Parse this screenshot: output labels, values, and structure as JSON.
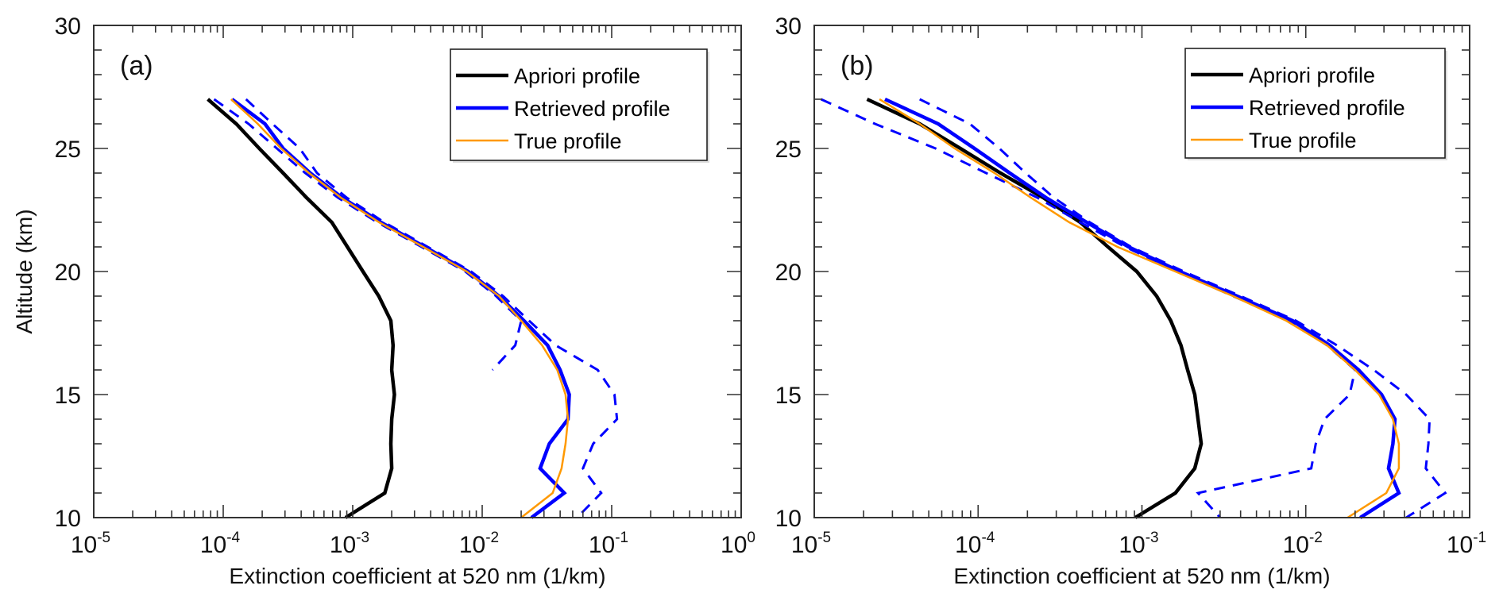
{
  "chart_data": [
    {
      "type": "line",
      "panel_label": "(a)",
      "xlabel": "Extinction coefficient at 520 nm (1/km)",
      "ylabel": "Altitude (km)",
      "xscale": "log",
      "xlim": [
        1e-05,
        1
      ],
      "ylim": [
        10,
        30
      ],
      "xticks": [
        {
          "base": "10",
          "exp": "-5"
        },
        {
          "base": "10",
          "exp": "-4"
        },
        {
          "base": "10",
          "exp": "-3"
        },
        {
          "base": "10",
          "exp": "-2"
        },
        {
          "base": "10",
          "exp": "-1"
        },
        {
          "base": "10",
          "exp": "0"
        }
      ],
      "yticks": [
        "10",
        "15",
        "20",
        "25",
        "30"
      ],
      "legend": {
        "position": "top-right",
        "entries": [
          "Apriori profile",
          "Retrieved profile",
          "True profile"
        ]
      },
      "series": [
        {
          "name": "Apriori profile",
          "color": "#000000",
          "style": "solid",
          "altitude": [
            27,
            26,
            25,
            24,
            23,
            22,
            21,
            20,
            19,
            18,
            17,
            16,
            15,
            14,
            13,
            12,
            11,
            10
          ],
          "values": [
            7.6e-05,
            0.000126,
            0.00019,
            0.00029,
            0.00044,
            0.00069,
            0.00091,
            0.0012,
            0.00159,
            0.00197,
            0.00205,
            0.002,
            0.0021,
            0.002,
            0.00197,
            0.002,
            0.00177,
            0.00088
          ]
        },
        {
          "name": "Retrieved profile",
          "color": "#0000ff",
          "style": "solid",
          "altitude": [
            27,
            26,
            25,
            24,
            23,
            22,
            21,
            20,
            19,
            18,
            17,
            16,
            15,
            14,
            13,
            12,
            11,
            10
          ],
          "values": [
            0.000117,
            0.00021,
            0.00029,
            0.00047,
            0.00083,
            0.00165,
            0.0036,
            0.0078,
            0.0135,
            0.021,
            0.032,
            0.04,
            0.047,
            0.046,
            0.033,
            0.028,
            0.043,
            0.024
          ]
        },
        {
          "name": "Retrieved upper bound",
          "color": "#0000ff",
          "style": "dashed",
          "altitude": [
            27,
            26,
            25,
            24,
            23,
            22,
            21,
            20,
            19,
            18,
            17,
            16,
            15,
            14,
            13,
            12,
            11,
            10
          ],
          "values": [
            0.00015,
            0.00024,
            0.00039,
            0.00053,
            0.0009,
            0.00175,
            0.0038,
            0.0082,
            0.0145,
            0.023,
            0.037,
            0.078,
            0.105,
            0.11,
            0.072,
            0.06,
            0.083,
            0.054
          ]
        },
        {
          "name": "Retrieved lower bound",
          "color": "#0000ff",
          "style": "dashed",
          "altitude": [
            27,
            26,
            25,
            24,
            23,
            22,
            21,
            20,
            19,
            18,
            17,
            16
          ],
          "values": [
            8.5e-05,
            0.000157,
            0.00026,
            0.00043,
            0.00077,
            0.00155,
            0.0034,
            0.0074,
            0.0128,
            0.02,
            0.018,
            0.012
          ]
        },
        {
          "name": "True profile",
          "color": "#ff9900",
          "style": "solid",
          "altitude": [
            27,
            26,
            25,
            24,
            23,
            22,
            21,
            20,
            19,
            18,
            17,
            16,
            15,
            14,
            13,
            12,
            11,
            10
          ],
          "values": [
            0.000115,
            0.000185,
            0.00028,
            0.00046,
            0.00081,
            0.0016,
            0.0035,
            0.0076,
            0.0135,
            0.02,
            0.029,
            0.038,
            0.044,
            0.046,
            0.044,
            0.041,
            0.035,
            0.02
          ]
        }
      ]
    },
    {
      "type": "line",
      "panel_label": "(b)",
      "xlabel": "Extinction coefficient at 520 nm (1/km)",
      "ylabel": "",
      "xscale": "log",
      "xlim": [
        1e-05,
        0.1
      ],
      "ylim": [
        10,
        30
      ],
      "xticks": [
        {
          "base": "10",
          "exp": "-5"
        },
        {
          "base": "10",
          "exp": "-4"
        },
        {
          "base": "10",
          "exp": "-3"
        },
        {
          "base": "10",
          "exp": "-2"
        },
        {
          "base": "10",
          "exp": "-1"
        }
      ],
      "yticks": [
        "10",
        "15",
        "20",
        "25",
        "30"
      ],
      "legend": {
        "position": "top-right",
        "entries": [
          "Apriori profile",
          "Retrieved profile",
          "True profile"
        ]
      },
      "series": [
        {
          "name": "Apriori profile",
          "color": "#000000",
          "style": "solid",
          "altitude": [
            27,
            26,
            25,
            24,
            23,
            22,
            21,
            20,
            19,
            18,
            17,
            16,
            15,
            14,
            13,
            12,
            11,
            10
          ],
          "values": [
            2.1e-05,
            4.4e-05,
            7.8e-05,
            0.000137,
            0.00025,
            0.00042,
            0.00062,
            0.00093,
            0.00123,
            0.0015,
            0.00173,
            0.0019,
            0.0021,
            0.0022,
            0.0023,
            0.0021,
            0.0016,
            0.00091
          ]
        },
        {
          "name": "Retrieved profile",
          "color": "#0000ff",
          "style": "solid",
          "altitude": [
            27,
            26,
            25,
            24,
            23,
            22,
            21,
            20,
            19,
            18,
            17,
            16,
            15,
            14,
            13,
            12,
            11,
            10
          ],
          "values": [
            2.7e-05,
            5.7e-05,
            9.5e-05,
            0.000156,
            0.00026,
            0.00046,
            0.00083,
            0.0017,
            0.0038,
            0.0083,
            0.014,
            0.021,
            0.029,
            0.035,
            0.034,
            0.032,
            0.037,
            0.0215
          ]
        },
        {
          "name": "Retrieved upper bound",
          "color": "#0000ff",
          "style": "dashed",
          "altitude": [
            27,
            26,
            25,
            24,
            23,
            22,
            21,
            20,
            19,
            18,
            17,
            16,
            15,
            14,
            13,
            12,
            11,
            10
          ],
          "values": [
            4.4e-05,
            8.9e-05,
            0.000135,
            0.000195,
            0.00029,
            0.00048,
            0.00086,
            0.0018,
            0.004,
            0.0087,
            0.0155,
            0.026,
            0.041,
            0.057,
            0.056,
            0.054,
            0.071,
            0.041
          ]
        },
        {
          "name": "Retrieved lower bound",
          "color": "#0000ff",
          "style": "dashed",
          "altitude": [
            27,
            26,
            25,
            24,
            23,
            22,
            21,
            20,
            19,
            18,
            17,
            16,
            15,
            14,
            13,
            12,
            11,
            10
          ],
          "values": [
            1.1e-05,
            2.35e-05,
            5.5e-05,
            0.000112,
            0.00023,
            0.00042,
            0.00079,
            0.00165,
            0.0036,
            0.008,
            0.0135,
            0.02,
            0.0185,
            0.013,
            0.0115,
            0.0108,
            0.0022,
            0.003
          ]
        },
        {
          "name": "True profile",
          "color": "#ff9900",
          "style": "solid",
          "altitude": [
            27,
            26,
            25,
            24,
            23,
            22,
            21,
            20,
            19,
            18,
            17,
            16,
            15,
            14,
            13,
            12,
            11,
            10
          ],
          "values": [
            2.5e-05,
            4.4e-05,
            7.2e-05,
            0.000126,
            0.00021,
            0.00036,
            0.00071,
            0.0016,
            0.0036,
            0.0076,
            0.0135,
            0.02,
            0.028,
            0.034,
            0.037,
            0.037,
            0.031,
            0.018
          ]
        }
      ]
    }
  ]
}
